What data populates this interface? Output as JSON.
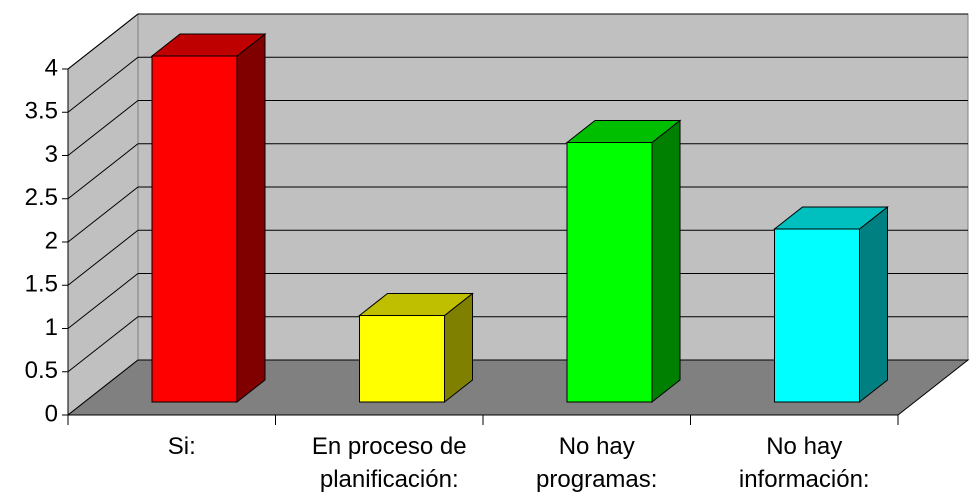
{
  "chart_data": {
    "type": "bar3d",
    "categories": [
      "Si:",
      "En proceso de planificación:",
      "No hay programas:",
      "No hay información:"
    ],
    "values": [
      4,
      1,
      3,
      2
    ],
    "colors": [
      "#ff0000",
      "#ffff00",
      "#00ff00",
      "#00ffff"
    ],
    "ylim": [
      0,
      4
    ],
    "yticks": [
      0,
      0.5,
      1,
      1.5,
      2,
      2.5,
      3,
      3.5,
      4
    ],
    "grid": true
  }
}
